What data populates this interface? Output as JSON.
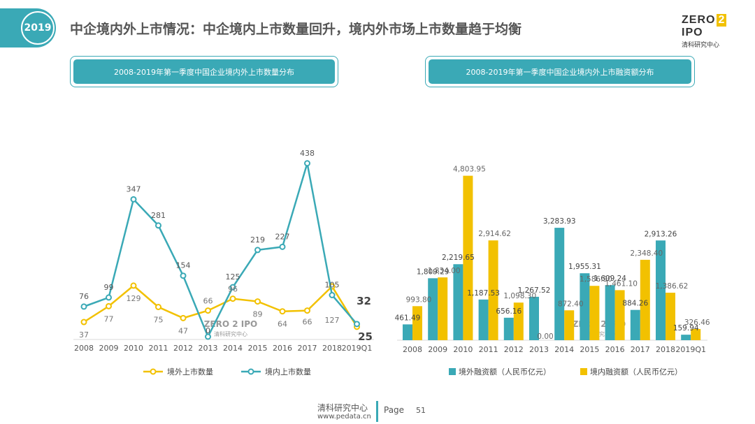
{
  "header": {
    "year_badge": "2019",
    "title": "中企境内外上市情况：中企境内上市数量回升，境内外市场上市数量趋于均衡",
    "logo_top_left": "ZERO",
    "logo_top_mid": "2",
    "logo_top_right": "IPO",
    "logo_bottom": "清科研究中心"
  },
  "left_panel_title": "2008-2019年第一季度中国企业境内外上市数量分布",
  "right_panel_title": "2008-2019年第一季度中国企业境内外上市融资额分布",
  "colors": {
    "teal": "#3aa9b6",
    "yellow": "#f2c100",
    "badge": "#3aa9b6"
  },
  "watermark": {
    "top": "ZERO 2 IPO",
    "bottom": "清科研究中心"
  },
  "chart_data": [
    {
      "type": "line",
      "title": "2008-2019年第一季度中国企业境内外上市数量分布",
      "categories": [
        "2008",
        "2009",
        "2010",
        "2011",
        "2012",
        "2013",
        "2014",
        "2015",
        "2016",
        "2017",
        "2018",
        "2019Q1"
      ],
      "series": [
        {
          "name": "境外上市数量",
          "color": "#f2c100",
          "values": [
            37,
            77,
            129,
            75,
            47,
            66,
            96,
            89,
            64,
            66,
            127,
            25
          ]
        },
        {
          "name": "境内上市数量",
          "color": "#3aa9b6",
          "values": [
            76,
            99,
            347,
            281,
            154,
            0,
            125,
            219,
            227,
            438,
            105,
            32
          ]
        }
      ],
      "labels": {
        "outside": [
          "37",
          "77",
          "129",
          "75",
          "47",
          "66",
          "96",
          "89",
          "64",
          "66",
          "127",
          "25"
        ],
        "domestic": [
          "76",
          "99",
          "347",
          "281",
          "154",
          "0",
          "125",
          "219",
          "227",
          "438",
          "105",
          "32"
        ]
      },
      "ylim": [
        0,
        480
      ],
      "legend": "bottom"
    },
    {
      "type": "bar",
      "title": "2008-2019年第一季度中国企业境内外上市融资额分布",
      "categories": [
        "2008",
        "2009",
        "2010",
        "2011",
        "2012",
        "2013",
        "2014",
        "2015",
        "2016",
        "2017",
        "2018",
        "2019Q1"
      ],
      "series": [
        {
          "name": "境外融资额（人民币亿元）",
          "color": "#3aa9b6",
          "values": [
            461.49,
            1809.29,
            2219.65,
            1187.53,
            656.16,
            1267.52,
            3283.93,
            1955.31,
            1609.24,
            884.26,
            2913.26,
            159.94
          ]
        },
        {
          "name": "境内融资额（人民币亿元）",
          "color": "#f2c100",
          "values": [
            993.8,
            1834.0,
            4803.95,
            2914.62,
            1098.3,
            0.0,
            872.4,
            1586.9,
            1461.1,
            2348.4,
            1386.62,
            326.46
          ]
        }
      ],
      "labels": {
        "outside": [
          "461.49",
          "1,809.29",
          "2,219.65",
          "1,187.53",
          "656.16",
          "1,267.52",
          "3,283.93",
          "1,955.31",
          "1,609.24",
          "884.26",
          "2,913.26",
          "159.94"
        ],
        "domestic": [
          "993.80",
          "1,834.00",
          "4,803.95",
          "2,914.62",
          "1,098.30",
          "0.00",
          "872.40",
          "1,586.90",
          "1,461.10",
          "2,348.40",
          "1,386.62",
          "326.46"
        ]
      },
      "ylim": [
        0,
        5000
      ],
      "legend": "bottom"
    }
  ],
  "footer": {
    "org": "清科研究中心",
    "url": "www.pedata.cn",
    "page_label": "Page",
    "page_number": "51"
  }
}
